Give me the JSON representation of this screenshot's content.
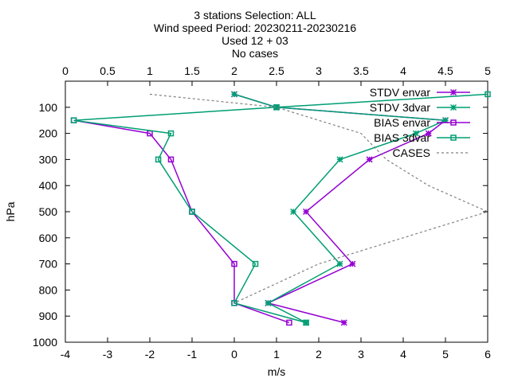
{
  "chart_data": {
    "type": "line",
    "title_lines": [
      "3 stations Selection: ALL",
      "Wind speed  Period: 20230211-20230216",
      "Used 12 + 03",
      "No cases"
    ],
    "xlabel": "m/s",
    "ylabel": "hPa",
    "xlim": [
      -4,
      6
    ],
    "ylim": [
      1000,
      0
    ],
    "x2lim": [
      0,
      5
    ],
    "x_ticks": [
      "-4",
      "-3",
      "-2",
      "-1",
      "0",
      "1",
      "2",
      "3",
      "4",
      "5",
      "6"
    ],
    "x2_ticks": [
      "0",
      "0.5",
      "1",
      "1.5",
      "2",
      "2.5",
      "3",
      "3.5",
      "4",
      "4.5",
      "5"
    ],
    "y_ticks": [
      "100",
      "200",
      "300",
      "400",
      "500",
      "600",
      "700",
      "800",
      "900",
      "1000"
    ],
    "legend_position": "top-right",
    "series": [
      {
        "name": "STDV envar",
        "color": "#9400d3",
        "marker": "star",
        "x": [
          0,
          1,
          5,
          4.6,
          3.2,
          1.7,
          2.8,
          0.8,
          2.6
        ],
        "y": [
          50,
          100,
          150,
          200,
          300,
          500,
          700,
          850,
          925
        ]
      },
      {
        "name": "STDV 3dvar",
        "color": "#009e73",
        "marker": "star",
        "x": [
          0,
          1,
          5,
          4.3,
          2.5,
          1.4,
          2.5,
          0.8,
          1.7
        ],
        "y": [
          50,
          100,
          150,
          200,
          300,
          500,
          700,
          850,
          925
        ]
      },
      {
        "name": "BIAS envar",
        "color": "#9400d3",
        "marker": "square",
        "x": [
          -3.8,
          -2,
          -1.5,
          -1,
          0,
          0,
          1.3
        ],
        "y": [
          150,
          200,
          300,
          500,
          700,
          850,
          925
        ]
      },
      {
        "name": "BIAS 3dvar",
        "color": "#009e73",
        "marker": "square",
        "x": [
          6,
          1,
          -3.8,
          -1.5,
          -1.8,
          -1,
          0.5,
          0,
          1.7
        ],
        "y": [
          50,
          100,
          150,
          200,
          300,
          500,
          700,
          850,
          925
        ]
      },
      {
        "name": "CASES",
        "color": "#808080",
        "marker": "none",
        "dashed": true,
        "axis": "x2",
        "x": [
          1,
          2.5,
          3,
          3.5,
          3.8,
          4.3,
          5,
          4,
          3,
          2
        ],
        "y": [
          50,
          100,
          150,
          200,
          300,
          400,
          500,
          600,
          700,
          850
        ]
      }
    ]
  }
}
